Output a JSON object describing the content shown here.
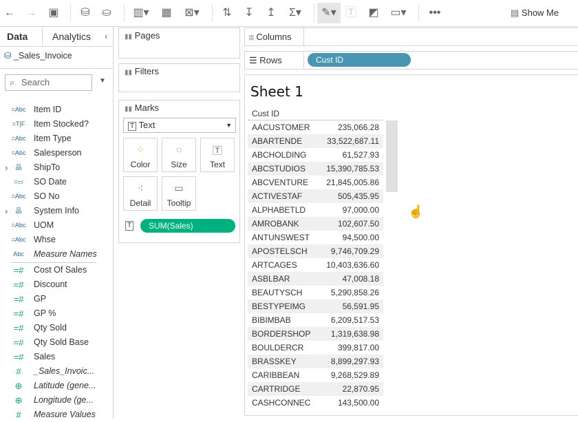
{
  "toolbar": {
    "show_me": "Show Me",
    "icons": [
      "back-icon",
      "forward-icon",
      "save-icon",
      "new-datasource-icon",
      "datasource-icon",
      "new-worksheet-icon",
      "duplicate-icon",
      "clear-sheet-icon",
      "swap-icon",
      "sort-ascending-icon",
      "sort-descending-icon",
      "totals-icon",
      "highlight-icon",
      "labels-icon",
      "annotate-icon",
      "fit-icon",
      "more-icon",
      "show-me-icon"
    ]
  },
  "data_pane": {
    "tabs": [
      "Data",
      "Analytics"
    ],
    "datasource": "_Sales_Invoice",
    "search_placeholder": "Search",
    "dimensions": [
      {
        "type": "=Abc",
        "label": "Item ID"
      },
      {
        "type": "=T|F",
        "label": "Item Stocked?"
      },
      {
        "type": "=Abc",
        "label": "Item Type"
      },
      {
        "type": "=Abc",
        "label": "Salesperson"
      },
      {
        "type": "hierarchy",
        "label": "ShipTo"
      },
      {
        "type": "date",
        "label": "SO Date"
      },
      {
        "type": "=Abc",
        "label": "SO No"
      },
      {
        "type": "hierarchy",
        "label": "System Info"
      },
      {
        "type": "=Abc",
        "label": "UOM"
      },
      {
        "type": "=Abc",
        "label": "Whse"
      },
      {
        "type": "Abc",
        "label": "Measure Names"
      }
    ],
    "measures": [
      {
        "type": "=#",
        "label": "Cost Of Sales"
      },
      {
        "type": "=#",
        "label": "Discount"
      },
      {
        "type": "=#",
        "label": "GP"
      },
      {
        "type": "=#",
        "label": "GP %"
      },
      {
        "type": "=#",
        "label": "Qty Sold"
      },
      {
        "type": "=#",
        "label": "Qty Sold Base"
      },
      {
        "type": "=#",
        "label": "Sales"
      },
      {
        "type": "#",
        "label": "_Sales_Invoic..."
      },
      {
        "type": "globe",
        "label": "Latitude (gene..."
      },
      {
        "type": "globe",
        "label": "Longitude (ge..."
      },
      {
        "type": "#",
        "label": "Measure Values"
      }
    ]
  },
  "cards": {
    "pages": "Pages",
    "filters": "Filters",
    "marks": "Marks",
    "mark_type": "Text",
    "buttons": [
      "Color",
      "Size",
      "Text",
      "Detail",
      "Tooltip"
    ],
    "pill": "SUM(Sales)"
  },
  "shelves": {
    "columns": "Columns",
    "rows": "Rows",
    "rows_pill": "Cust ID"
  },
  "colors": {
    "dimension_pill": "#4996b2",
    "measure_pill": "#00b180"
  },
  "sheet": {
    "title": "Sheet 1",
    "header": "Cust ID",
    "rows": [
      [
        "AACUSTOMER",
        "235,066.28"
      ],
      [
        "ABARTENDE",
        "33,522,687.11"
      ],
      [
        "ABCHOLDING",
        "61,527.93"
      ],
      [
        "ABCSTUDIOS",
        "15,390,785.53"
      ],
      [
        "ABCVENTURE",
        "21,845,005.86"
      ],
      [
        "ACTIVESTAF",
        "505,435.95"
      ],
      [
        "ALPHABETLD",
        "97,000.00"
      ],
      [
        "AMROBANK",
        "102,607.50"
      ],
      [
        "ANTUNSWEST",
        "94,500.00"
      ],
      [
        "APOSTELSCH",
        "9,746,709.29"
      ],
      [
        "ARTCAGES",
        "10,403,636.60"
      ],
      [
        "ASBLBAR",
        "47,008.18"
      ],
      [
        "BEAUTYSCH",
        "5,290,858.26"
      ],
      [
        "BESTYPEIMG",
        "56,591.95"
      ],
      [
        "BIBIMBAB",
        "6,209,517.53"
      ],
      [
        "BORDERSHOP",
        "1,319,638.98"
      ],
      [
        "BOULDERCR",
        "399,817.00"
      ],
      [
        "BRASSKEY",
        "8,899,297.93"
      ],
      [
        "CARIBBEAN",
        "9,268,529.89"
      ],
      [
        "CARTRIDGE",
        "22,870.95"
      ],
      [
        "CASHCONNEC",
        "143,500.00"
      ]
    ]
  }
}
